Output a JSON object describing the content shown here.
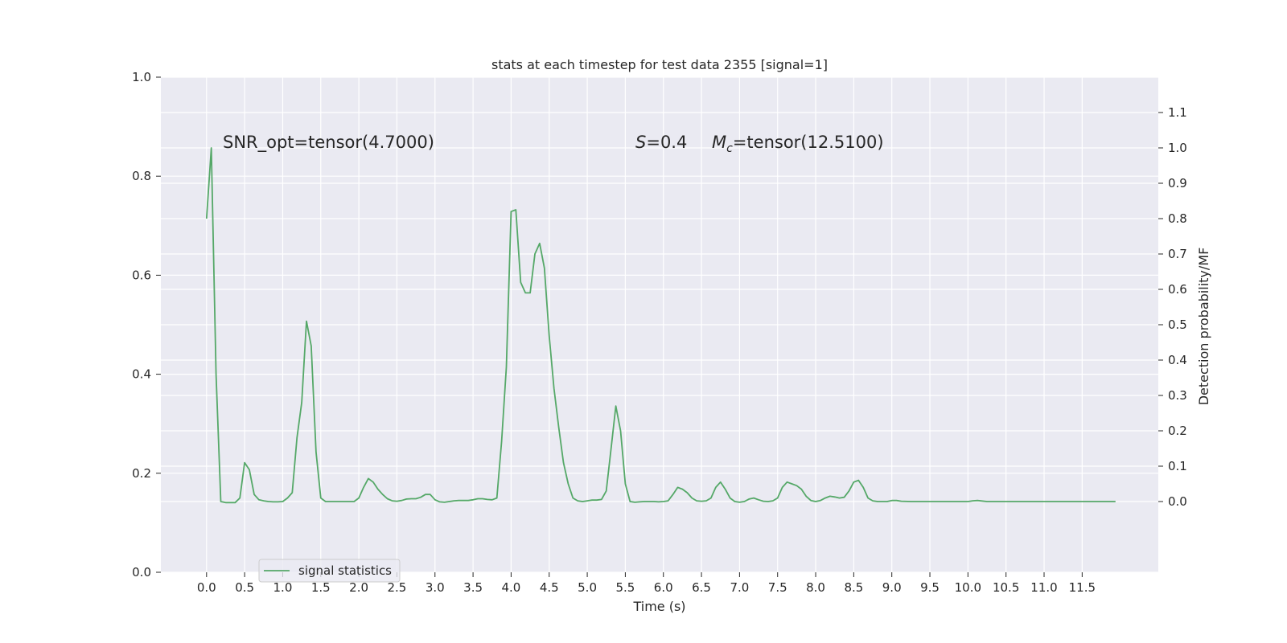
{
  "chart_data": {
    "type": "line",
    "title": "stats at each timestep for test data 2355 [signal=1]",
    "xlabel": "Time (s)",
    "ylabel_left": "",
    "ylabel_right": "Detection probability/MF",
    "xlim": [
      -0.6,
      12.5
    ],
    "ylim_left": [
      0.0,
      1.0
    ],
    "ylim_right": [
      -0.2,
      1.2
    ],
    "xticks": [
      "0.0",
      "0.5",
      "1.0",
      "1.5",
      "2.0",
      "2.5",
      "3.0",
      "3.5",
      "4.0",
      "4.5",
      "5.0",
      "5.5",
      "6.0",
      "6.5",
      "7.0",
      "7.5",
      "8.0",
      "8.5",
      "9.0",
      "9.5",
      "10.0",
      "10.5",
      "11.0",
      "11.5"
    ],
    "xtick_values": [
      0.0,
      0.5,
      1.0,
      1.5,
      2.0,
      2.5,
      3.0,
      3.5,
      4.0,
      4.5,
      5.0,
      5.5,
      6.0,
      6.5,
      7.0,
      7.5,
      8.0,
      8.5,
      9.0,
      9.5,
      10.0,
      10.5,
      11.0,
      11.5
    ],
    "yticks_left": [
      "0.0",
      "0.2",
      "0.4",
      "0.6",
      "0.8",
      "1.0"
    ],
    "ytick_values_left": [
      0.0,
      0.2,
      0.4,
      0.6,
      0.8,
      1.0
    ],
    "yticks_right": [
      "0.0",
      "0.1",
      "0.2",
      "0.3",
      "0.4",
      "0.5",
      "0.6",
      "0.7",
      "0.8",
      "0.9",
      "1.0",
      "1.1"
    ],
    "ytick_values_right": [
      0.0,
      0.1,
      0.2,
      0.3,
      0.4,
      0.5,
      0.6,
      0.7,
      0.8,
      0.9,
      1.0,
      1.1
    ],
    "grid": true,
    "legend_placement": "lower-left",
    "annotations": {
      "snr": "SNR_opt=tensor(4.7000)",
      "s_symbol": "S",
      "s_value": "=0.4",
      "m_symbol": "M",
      "m_subscript": "c",
      "m_value": "=tensor(12.5100)"
    },
    "series": [
      {
        "name": "signal statistics",
        "color": "#55a868",
        "axis": "right",
        "points": [
          [
            0.0,
            0.8
          ],
          [
            0.0625,
            1.0
          ],
          [
            0.125,
            0.36
          ],
          [
            0.1875,
            0.0
          ],
          [
            0.25,
            -0.003
          ],
          [
            0.3125,
            -0.003
          ],
          [
            0.375,
            -0.003
          ],
          [
            0.4375,
            0.01
          ],
          [
            0.5,
            0.11
          ],
          [
            0.5625,
            0.09
          ],
          [
            0.625,
            0.02
          ],
          [
            0.6875,
            0.005
          ],
          [
            0.75,
            0.002
          ],
          [
            0.8125,
            0.0
          ],
          [
            0.875,
            -0.001
          ],
          [
            0.9375,
            -0.001
          ],
          [
            1.0,
            0.0
          ],
          [
            1.0625,
            0.01
          ],
          [
            1.125,
            0.025
          ],
          [
            1.1875,
            0.18
          ],
          [
            1.25,
            0.28
          ],
          [
            1.3125,
            0.51
          ],
          [
            1.375,
            0.44
          ],
          [
            1.4375,
            0.14
          ],
          [
            1.5,
            0.01
          ],
          [
            1.5625,
            0.0
          ],
          [
            1.625,
            0.0
          ],
          [
            1.75,
            0.0
          ],
          [
            1.875,
            0.0
          ],
          [
            1.9375,
            0.0
          ],
          [
            2.0,
            0.01
          ],
          [
            2.0625,
            0.04
          ],
          [
            2.125,
            0.065
          ],
          [
            2.1875,
            0.055
          ],
          [
            2.25,
            0.035
          ],
          [
            2.3125,
            0.02
          ],
          [
            2.375,
            0.008
          ],
          [
            2.4375,
            0.002
          ],
          [
            2.5,
            0.001
          ],
          [
            2.5625,
            0.003
          ],
          [
            2.625,
            0.007
          ],
          [
            2.6875,
            0.008
          ],
          [
            2.75,
            0.008
          ],
          [
            2.8125,
            0.012
          ],
          [
            2.875,
            0.02
          ],
          [
            2.9375,
            0.02
          ],
          [
            3.0,
            0.005
          ],
          [
            3.0625,
            -0.001
          ],
          [
            3.125,
            -0.002
          ],
          [
            3.1875,
            0.0
          ],
          [
            3.25,
            0.002
          ],
          [
            3.3125,
            0.003
          ],
          [
            3.375,
            0.003
          ],
          [
            3.4375,
            0.003
          ],
          [
            3.5,
            0.005
          ],
          [
            3.5625,
            0.008
          ],
          [
            3.625,
            0.008
          ],
          [
            3.6875,
            0.006
          ],
          [
            3.75,
            0.005
          ],
          [
            3.8125,
            0.01
          ],
          [
            3.875,
            0.17
          ],
          [
            3.9375,
            0.38
          ],
          [
            4.0,
            0.82
          ],
          [
            4.0625,
            0.825
          ],
          [
            4.125,
            0.62
          ],
          [
            4.1875,
            0.59
          ],
          [
            4.25,
            0.59
          ],
          [
            4.3125,
            0.7
          ],
          [
            4.375,
            0.73
          ],
          [
            4.4375,
            0.66
          ],
          [
            4.5,
            0.47
          ],
          [
            4.5625,
            0.32
          ],
          [
            4.625,
            0.21
          ],
          [
            4.6875,
            0.11
          ],
          [
            4.75,
            0.05
          ],
          [
            4.8125,
            0.01
          ],
          [
            4.875,
            0.002
          ],
          [
            4.9375,
            0.0
          ],
          [
            5.0,
            0.002
          ],
          [
            5.0625,
            0.004
          ],
          [
            5.125,
            0.004
          ],
          [
            5.1875,
            0.006
          ],
          [
            5.25,
            0.03
          ],
          [
            5.3125,
            0.15
          ],
          [
            5.375,
            0.27
          ],
          [
            5.4375,
            0.2
          ],
          [
            5.5,
            0.05
          ],
          [
            5.5625,
            0.0
          ],
          [
            5.625,
            -0.002
          ],
          [
            5.6875,
            -0.001
          ],
          [
            5.75,
            0.0
          ],
          [
            5.8125,
            0.0
          ],
          [
            5.875,
            0.0
          ],
          [
            5.9375,
            -0.001
          ],
          [
            6.0,
            0.0
          ],
          [
            6.0625,
            0.002
          ],
          [
            6.125,
            0.02
          ],
          [
            6.1875,
            0.04
          ],
          [
            6.25,
            0.035
          ],
          [
            6.3125,
            0.025
          ],
          [
            6.375,
            0.01
          ],
          [
            6.4375,
            0.002
          ],
          [
            6.5,
            0.001
          ],
          [
            6.5625,
            0.002
          ],
          [
            6.625,
            0.01
          ],
          [
            6.6875,
            0.04
          ],
          [
            6.75,
            0.055
          ],
          [
            6.8125,
            0.035
          ],
          [
            6.875,
            0.01
          ],
          [
            6.9375,
            0.0
          ],
          [
            7.0,
            -0.002
          ],
          [
            7.0625,
            0.0
          ],
          [
            7.125,
            0.007
          ],
          [
            7.1875,
            0.01
          ],
          [
            7.25,
            0.005
          ],
          [
            7.3125,
            0.001
          ],
          [
            7.375,
            0.0
          ],
          [
            7.4375,
            0.002
          ],
          [
            7.5,
            0.01
          ],
          [
            7.5625,
            0.04
          ],
          [
            7.625,
            0.055
          ],
          [
            7.6875,
            0.05
          ],
          [
            7.75,
            0.045
          ],
          [
            7.8125,
            0.035
          ],
          [
            7.875,
            0.015
          ],
          [
            7.9375,
            0.003
          ],
          [
            8.0,
            0.0
          ],
          [
            8.0625,
            0.003
          ],
          [
            8.125,
            0.01
          ],
          [
            8.1875,
            0.015
          ],
          [
            8.25,
            0.013
          ],
          [
            8.3125,
            0.01
          ],
          [
            8.375,
            0.012
          ],
          [
            8.4375,
            0.03
          ],
          [
            8.5,
            0.055
          ],
          [
            8.5625,
            0.06
          ],
          [
            8.625,
            0.04
          ],
          [
            8.6875,
            0.01
          ],
          [
            8.75,
            0.002
          ],
          [
            8.8125,
            0.0
          ],
          [
            8.875,
            0.0
          ],
          [
            8.9375,
            0.0
          ],
          [
            9.0,
            0.003
          ],
          [
            9.0625,
            0.003
          ],
          [
            9.125,
            0.001
          ],
          [
            9.25,
            0.0
          ],
          [
            9.5,
            0.0
          ],
          [
            9.75,
            0.0
          ],
          [
            10.0,
            0.0
          ],
          [
            10.0625,
            0.002
          ],
          [
            10.125,
            0.003
          ],
          [
            10.25,
            0.0
          ],
          [
            10.5,
            0.0
          ],
          [
            10.75,
            0.0
          ],
          [
            11.0,
            0.0
          ],
          [
            11.25,
            0.0
          ],
          [
            11.5,
            0.0
          ],
          [
            11.75,
            0.0
          ],
          [
            11.9375,
            0.0
          ]
        ]
      }
    ]
  }
}
